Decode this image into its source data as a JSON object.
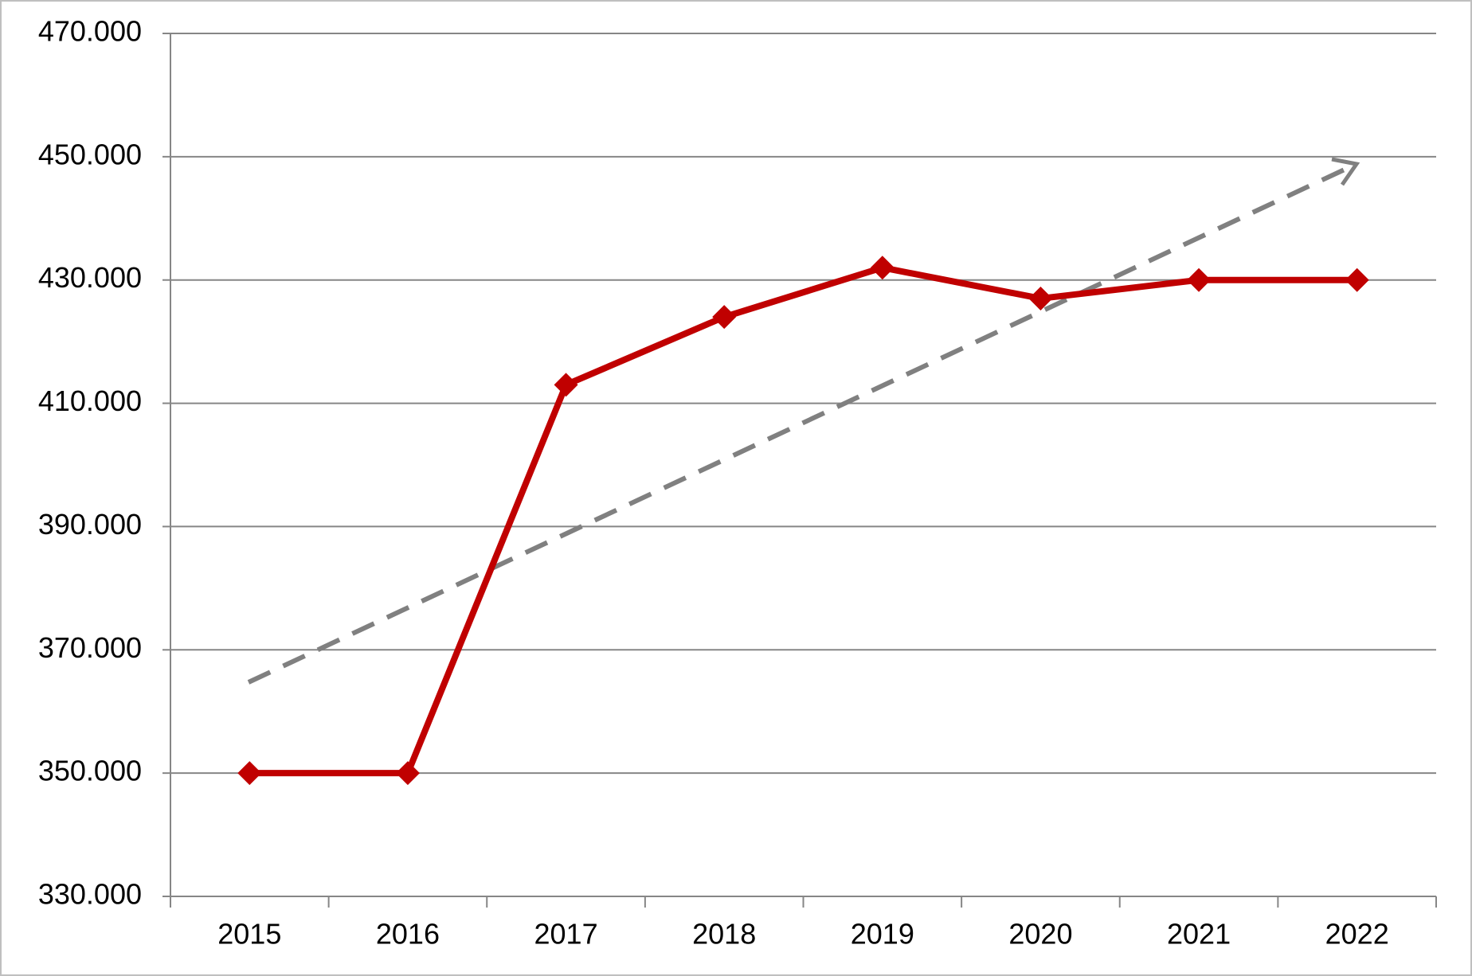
{
  "chart_data": {
    "type": "line",
    "categories": [
      "2015",
      "2016",
      "2017",
      "2018",
      "2019",
      "2020",
      "2021",
      "2022"
    ],
    "series": [
      {
        "color": "#c00000",
        "values": [
          350000,
          350000,
          413000,
          424000,
          432000,
          427000,
          430000,
          430000
        ]
      }
    ],
    "ylim": [
      330000,
      470000
    ],
    "yticks": [
      {
        "value": 330000,
        "label": "330.000"
      },
      {
        "value": 350000,
        "label": "350.000"
      },
      {
        "value": 370000,
        "label": "370.000"
      },
      {
        "value": 390000,
        "label": "390.000"
      },
      {
        "value": 410000,
        "label": "410.000"
      },
      {
        "value": 430000,
        "label": "430.000"
      },
      {
        "value": 450000,
        "label": "450.000"
      },
      {
        "value": 470000,
        "label": "470.000"
      }
    ],
    "grid": true
  }
}
